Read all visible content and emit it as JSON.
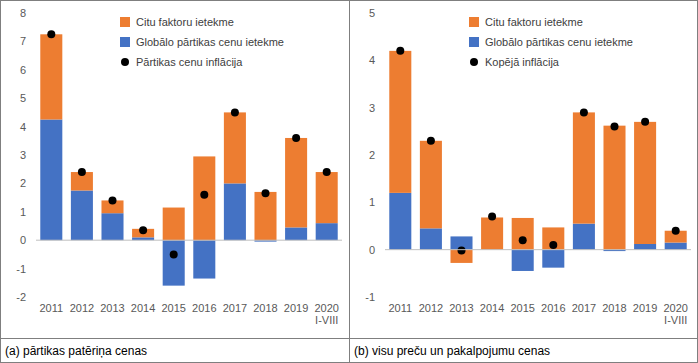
{
  "chart_data": [
    {
      "type": "bar",
      "stacked": true,
      "caption": "(a) pārtikas patēriņa cenas",
      "categories": [
        "2011",
        "2012",
        "2013",
        "2014",
        "2015",
        "2016",
        "2017",
        "2018",
        "2019",
        "2020 I-VIII"
      ],
      "ylim": [
        -2,
        8
      ],
      "yticks": [
        -2,
        -1,
        0,
        1,
        2,
        3,
        4,
        5,
        6,
        7,
        8
      ],
      "grid": false,
      "legend": "top",
      "series": [
        {
          "name": "Citu faktoru ietekme",
          "type": "bar",
          "color": "#ed7d31",
          "values": [
            3.0,
            0.65,
            0.45,
            0.3,
            1.15,
            2.95,
            2.5,
            1.7,
            3.15,
            1.8
          ]
        },
        {
          "name": "Globālo pārtikas cenu ietekme",
          "type": "bar",
          "color": "#4472c4",
          "values": [
            4.25,
            1.75,
            0.95,
            0.1,
            -1.6,
            -1.35,
            2.0,
            -0.05,
            0.45,
            0.6
          ]
        },
        {
          "name": "Pārtikas cenu inflācija",
          "type": "scatter",
          "marker": "circle",
          "color": "#000000",
          "values": [
            7.25,
            2.4,
            1.4,
            0.35,
            -0.5,
            1.6,
            4.5,
            1.65,
            3.6,
            2.4
          ]
        }
      ]
    },
    {
      "type": "bar",
      "stacked": true,
      "caption": "(b) visu preču un pakalpojumu cenas",
      "categories": [
        "2011",
        "2012",
        "2013",
        "2014",
        "2015",
        "2016",
        "2017",
        "2018",
        "2019",
        "2020 I-VIII"
      ],
      "ylim": [
        -1,
        5
      ],
      "yticks": [
        -1,
        0,
        1,
        2,
        3,
        4,
        5
      ],
      "grid": false,
      "legend": "top",
      "series": [
        {
          "name": "Citu faktoru ietekme",
          "type": "bar",
          "color": "#ed7d31",
          "values": [
            3.0,
            1.85,
            -0.28,
            0.68,
            0.67,
            0.47,
            2.35,
            2.62,
            2.58,
            0.25
          ]
        },
        {
          "name": "Globālo pārtikas cenu ietekme",
          "type": "bar",
          "color": "#4472c4",
          "values": [
            1.2,
            0.45,
            0.28,
            0.0,
            -0.45,
            -0.38,
            0.55,
            -0.03,
            0.12,
            0.15
          ]
        },
        {
          "name": "Kopējā inflācija",
          "type": "scatter",
          "marker": "circle",
          "color": "#000000",
          "values": [
            4.2,
            2.3,
            -0.02,
            0.7,
            0.2,
            0.1,
            2.9,
            2.6,
            2.7,
            0.4
          ]
        }
      ]
    }
  ]
}
